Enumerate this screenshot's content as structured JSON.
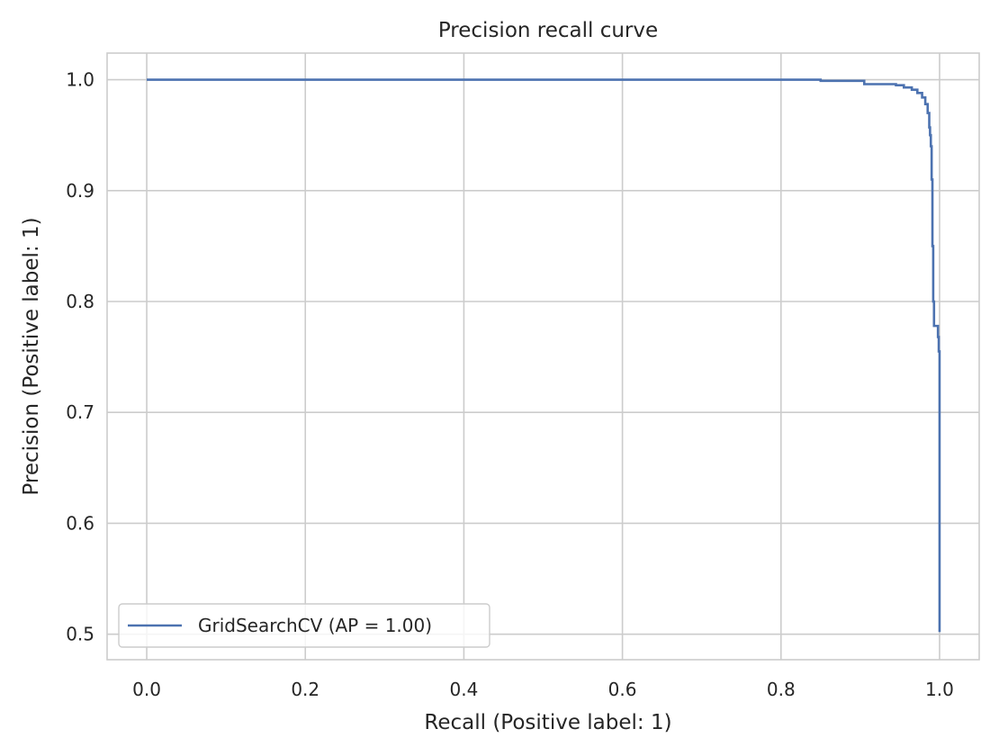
{
  "chart_data": {
    "type": "line",
    "title": "Precision recall curve",
    "xlabel": "Recall (Positive label: 1)",
    "ylabel": "Precision (Positive label: 1)",
    "xlim": [
      -0.05,
      1.05
    ],
    "ylim": [
      0.477,
      1.024
    ],
    "xticks": [
      0.0,
      0.2,
      0.4,
      0.6,
      0.8,
      1.0
    ],
    "xtick_labels": [
      "0.0",
      "0.2",
      "0.4",
      "0.6",
      "0.8",
      "1.0"
    ],
    "yticks": [
      0.5,
      0.6,
      0.7,
      0.8,
      0.9,
      1.0
    ],
    "ytick_labels": [
      "0.5",
      "0.6",
      "0.7",
      "0.8",
      "0.9",
      "1.0"
    ],
    "grid": true,
    "legend_position": "lower-left",
    "series": [
      {
        "name": "GridSearchCV (AP = 1.00)",
        "color": "#4c72b0",
        "x": [
          0.0,
          0.85,
          0.85,
          0.905,
          0.905,
          0.945,
          0.945,
          0.955,
          0.955,
          0.965,
          0.965,
          0.972,
          0.972,
          0.978,
          0.978,
          0.982,
          0.982,
          0.985,
          0.985,
          0.987,
          0.987,
          0.988,
          0.988,
          0.989,
          0.989,
          0.99,
          0.99,
          0.991,
          0.991,
          0.992,
          0.992,
          0.993,
          0.993,
          0.998,
          0.998,
          0.999,
          0.999,
          1.0,
          1.0
        ],
        "y": [
          1.0,
          1.0,
          0.999,
          0.999,
          0.996,
          0.996,
          0.995,
          0.995,
          0.993,
          0.993,
          0.991,
          0.991,
          0.988,
          0.988,
          0.984,
          0.984,
          0.978,
          0.978,
          0.97,
          0.97,
          0.957,
          0.957,
          0.95,
          0.95,
          0.94,
          0.94,
          0.91,
          0.91,
          0.85,
          0.85,
          0.8,
          0.8,
          0.778,
          0.778,
          0.768,
          0.768,
          0.755,
          0.755,
          0.502
        ]
      }
    ]
  }
}
